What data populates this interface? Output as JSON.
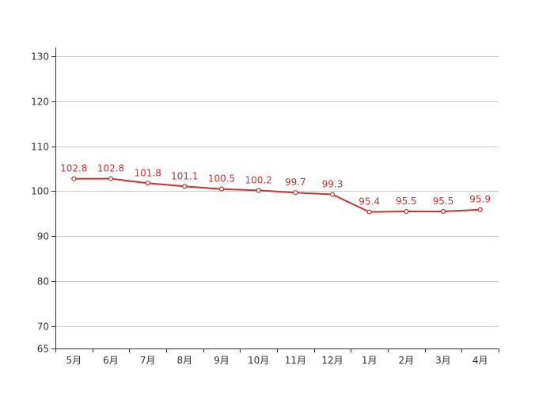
{
  "chart_data": {
    "type": "line",
    "categories": [
      "5月",
      "6月",
      "7月",
      "8月",
      "9月",
      "10月",
      "11月",
      "12月",
      "1月",
      "2月",
      "3月",
      "4月"
    ],
    "series": [
      {
        "values": [
          102.8,
          102.8,
          101.8,
          101.1,
          100.5,
          100.2,
          99.7,
          99.3,
          95.4,
          95.5,
          95.5,
          95.9
        ],
        "labels": [
          "102.8",
          "102.8",
          "101.8",
          "101.1",
          "100.5",
          "100.2",
          "99.7",
          "99.3",
          "95.4",
          "95.5",
          "95.5",
          "95.9"
        ],
        "color": "#c23531"
      }
    ],
    "y_ticks": [
      65,
      70,
      80,
      90,
      100,
      110,
      120,
      130
    ],
    "y_tick_labels": [
      "65",
      "70",
      "80",
      "90",
      "100",
      "110",
      "120",
      "130"
    ],
    "ylim": [
      65,
      132
    ],
    "grid": true,
    "gridline_color": "#cccccc",
    "axis_color": "#333333",
    "title": "",
    "xlabel": "",
    "ylabel": ""
  }
}
